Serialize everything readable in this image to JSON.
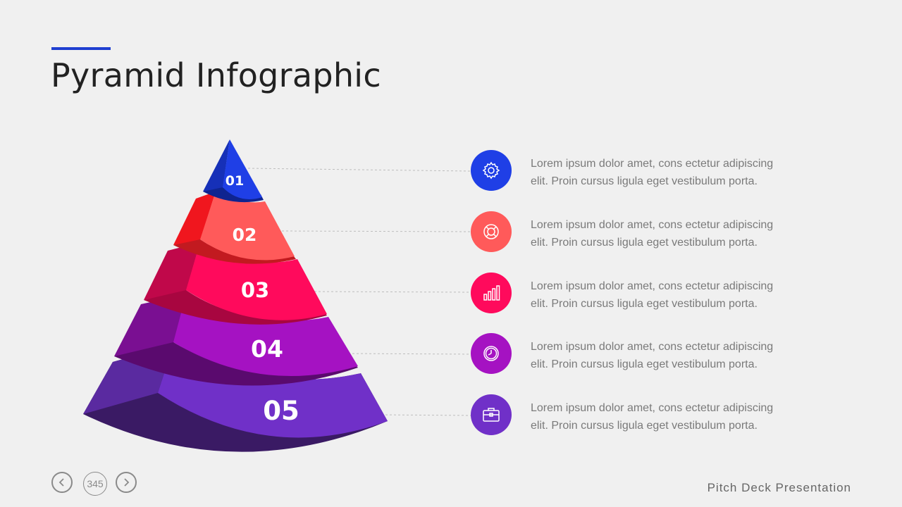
{
  "title": "Pyramid Infographic",
  "levels": [
    {
      "num": "01",
      "color": "#1f3fe6",
      "icon": "gear-icon",
      "line1": "Lorem ipsum dolor amet, cons ectetur adipiscing",
      "line2": "elit. Proin cursus ligula eget vestibulum porta."
    },
    {
      "num": "02",
      "color": "#ff5a5a",
      "icon": "lifebuoy-icon",
      "line1": "Lorem ipsum dolor amet, cons ectetur adipiscing",
      "line2": "elit. Proin cursus ligula eget vestibulum porta."
    },
    {
      "num": "03",
      "color": "#ff0a5c",
      "icon": "bar-chart-icon",
      "line1": "Lorem ipsum dolor amet, cons ectetur adipiscing",
      "line2": "elit. Proin cursus ligula eget vestibulum porta."
    },
    {
      "num": "04",
      "color": "#a512c2",
      "icon": "clock-icon",
      "line1": "Lorem ipsum dolor amet, cons ectetur adipiscing",
      "line2": "elit. Proin cursus ligula eget vestibulum porta."
    },
    {
      "num": "05",
      "color": "#7030c8",
      "icon": "briefcase-icon",
      "line1": "Lorem ipsum dolor amet, cons ectetur adipiscing",
      "line2": "elit. Proin cursus ligula eget vestibulum porta."
    }
  ],
  "page_number": "345",
  "footer": "Pitch Deck Presentation"
}
